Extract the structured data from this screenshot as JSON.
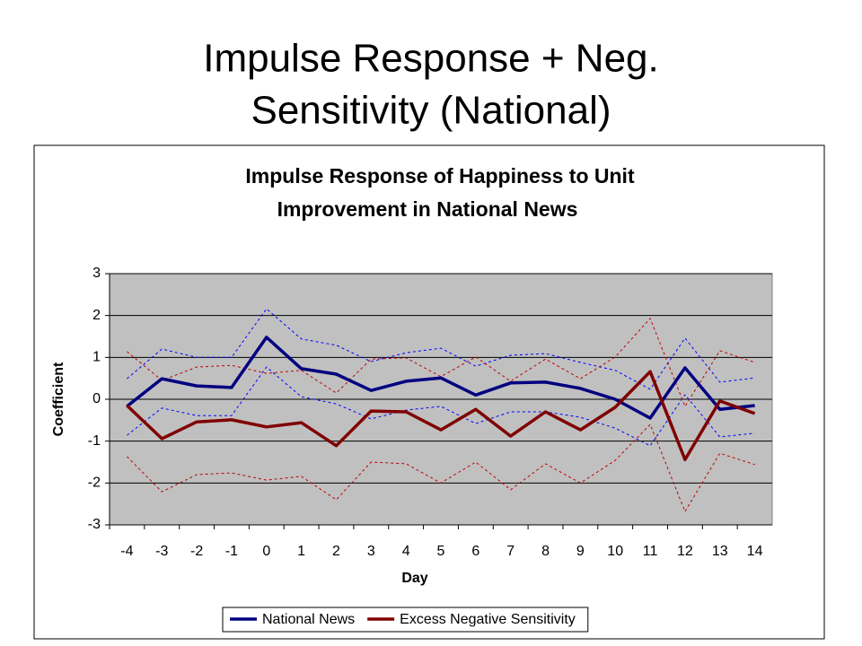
{
  "slide_title": [
    "Impulse Response + Neg.",
    "Sensitivity (National)"
  ],
  "chart_data": {
    "type": "line",
    "title": [
      "Impulse Response of Happiness to Unit",
      "Improvement in National News"
    ],
    "x_label": "Day",
    "y_label": "Coefficient",
    "categories": [
      "-4",
      "-3",
      "-2",
      "-1",
      "0",
      "1",
      "2",
      "3",
      "4",
      "5",
      "6",
      "7",
      "8",
      "9",
      "10",
      "11",
      "12",
      "13",
      "14"
    ],
    "ylim": [
      -3,
      3
    ],
    "yticks": [
      -3,
      -2,
      -1,
      0,
      1,
      2,
      3
    ],
    "grid": true,
    "legend": "bottom",
    "series": [
      {
        "name": "National News",
        "color": "#000080",
        "dashed": false,
        "values": [
          -0.17,
          0.49,
          0.32,
          0.28,
          1.48,
          0.73,
          0.6,
          0.21,
          0.43,
          0.51,
          0.1,
          0.39,
          0.41,
          0.26,
          0.0,
          -0.45,
          0.75,
          -0.24,
          -0.15
        ]
      },
      {
        "name": "Excess Negative Sensitivity",
        "color": "#800000",
        "dashed": false,
        "values": [
          -0.15,
          -0.94,
          -0.54,
          -0.49,
          -0.66,
          -0.56,
          -1.11,
          -0.28,
          -0.3,
          -0.73,
          -0.24,
          -0.88,
          -0.3,
          -0.73,
          -0.19,
          0.66,
          -1.44,
          -0.04,
          -0.34
        ]
      },
      {
        "color": "#0000ff",
        "dashed": true,
        "values": [
          0.49,
          1.2,
          1.0,
          1.0,
          2.16,
          1.44,
          1.29,
          0.9,
          1.11,
          1.22,
          0.79,
          1.05,
          1.09,
          0.88,
          0.69,
          0.24,
          1.46,
          0.41,
          0.51
        ]
      },
      {
        "color": "#0000ff",
        "dashed": true,
        "values": [
          -0.86,
          -0.21,
          -0.39,
          -0.39,
          0.77,
          0.06,
          -0.11,
          -0.47,
          -0.26,
          -0.17,
          -0.58,
          -0.3,
          -0.3,
          -0.43,
          -0.69,
          -1.11,
          0.11,
          -0.9,
          -0.81
        ]
      },
      {
        "color": "#c00000",
        "dashed": true,
        "values": [
          1.14,
          0.45,
          0.77,
          0.81,
          0.62,
          0.69,
          0.15,
          0.96,
          0.99,
          0.54,
          1.01,
          0.43,
          0.96,
          0.49,
          1.01,
          1.93,
          -0.17,
          1.16,
          0.88
        ]
      },
      {
        "color": "#c00000",
        "dashed": true,
        "values": [
          -1.37,
          -2.21,
          -1.8,
          -1.76,
          -1.93,
          -1.84,
          -2.4,
          -1.5,
          -1.54,
          -2.0,
          -1.5,
          -2.16,
          -1.54,
          -2.0,
          -1.46,
          -0.6,
          -2.68,
          -1.29,
          -1.56
        ]
      }
    ]
  }
}
